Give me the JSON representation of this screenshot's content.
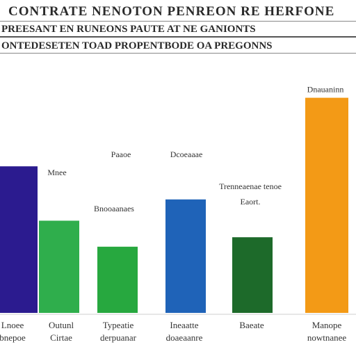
{
  "chart_data": {
    "type": "bar",
    "title_lines": [
      "CONTRATE NENOTON PENREON RE HERFONE",
      "PREESANT EN RUNEONS PAUTE AT NE GANIONTS",
      "ONTEDESETEN TOAD PROPENTBODE OA PREGONNS"
    ],
    "categories": [
      [
        "Lnoee",
        "bnepoe"
      ],
      [
        "Outunl",
        "Cirtae"
      ],
      [
        "Typeatie",
        "derpuanar"
      ],
      [
        "Ineaatte",
        "doaeaanre"
      ],
      [
        "Baeate",
        ""
      ],
      [
        "Manope",
        "nowtnanee"
      ]
    ],
    "values": [
      62,
      39,
      28,
      48,
      32,
      91
    ],
    "data_labels": [
      [
        "Mnee"
      ],
      [
        "Bnooaanaes"
      ],
      [
        "Paaoe"
      ],
      [
        "Dcoeaaae"
      ],
      [
        "Trenneaenae tenoe",
        "Eaort."
      ],
      [
        "Dnauaninn"
      ]
    ],
    "colors": [
      "#2b1b8f",
      "#2fae4c",
      "#27a83f",
      "#1f63b8",
      "#1d6a2a",
      "#f39a16"
    ],
    "ylim": [
      0,
      100
    ],
    "grid": false,
    "legend": "none"
  }
}
